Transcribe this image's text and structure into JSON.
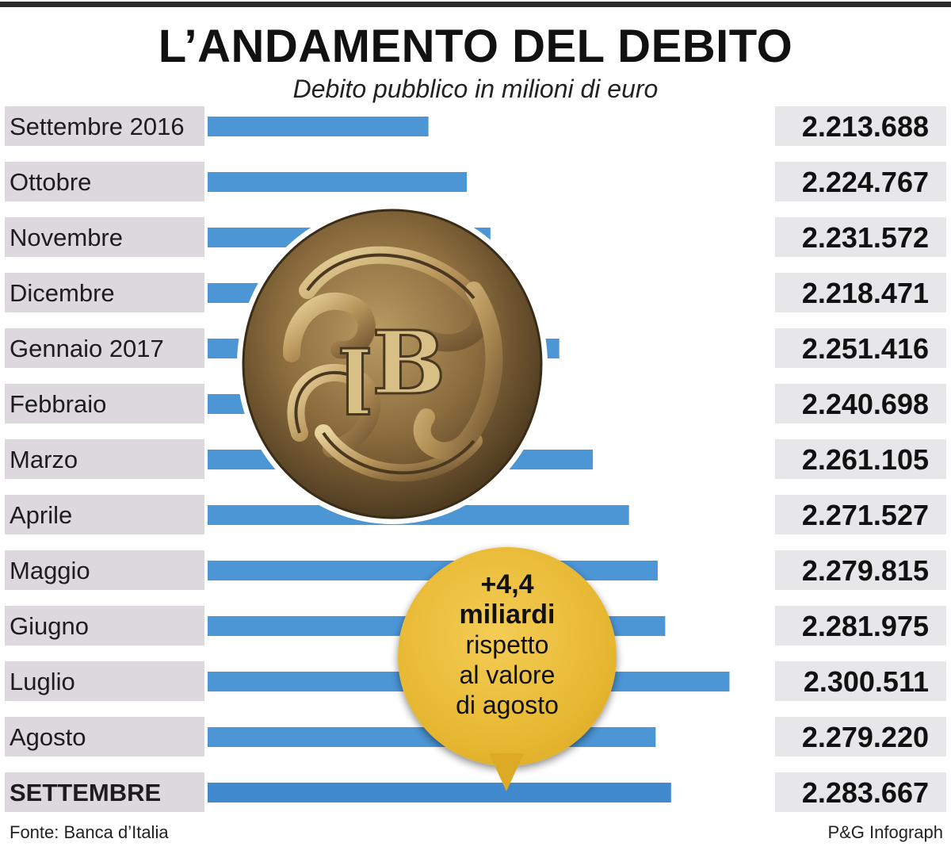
{
  "title": "L’ANDAMENTO DEL DEBITO",
  "subtitle": "Debito pubblico in milioni di euro",
  "footer": {
    "source": "Fonte: Banca d’Italia",
    "credit": "P&G Infograph"
  },
  "callout": {
    "line1": "+4,4",
    "line2": "miliardi",
    "line3": "rispetto",
    "line4": "al valore",
    "line5": "di agosto"
  },
  "seal_icon": "banca-d-italia-seal-icon",
  "colors": {
    "bar": "#4c96d6",
    "row_bg": "#e7e7e9",
    "label_bg": "#dcd8de",
    "callout": "#e7b832"
  },
  "chart_data": {
    "type": "bar",
    "orientation": "horizontal",
    "title": "L’ANDAMENTO DEL DEBITO",
    "subtitle": "Debito pubblico in milioni di euro",
    "categories": [
      "Settembre 2016",
      "Ottobre",
      "Novembre",
      "Dicembre",
      "Gennaio 2017",
      "Febbraio",
      "Marzo",
      "Aprile",
      "Maggio",
      "Giugno",
      "Luglio",
      "Agosto",
      "SETTEMBRE"
    ],
    "values": [
      2213688,
      2224767,
      2231572,
      2218471,
      2251416,
      2240698,
      2261105,
      2271527,
      2279815,
      2281975,
      2300511,
      2279220,
      2283667
    ],
    "value_labels": [
      "2.213.688",
      "2.224.767",
      "2.231.572",
      "2.218.471",
      "2.251.416",
      "2.240.698",
      "2.261.105",
      "2.271.527",
      "2.279.815",
      "2.281.975",
      "2.300.511",
      "2.279.220",
      "2.283.667"
    ],
    "xlim": [
      2150000,
      2310000
    ],
    "grid": false,
    "legend": "none"
  }
}
